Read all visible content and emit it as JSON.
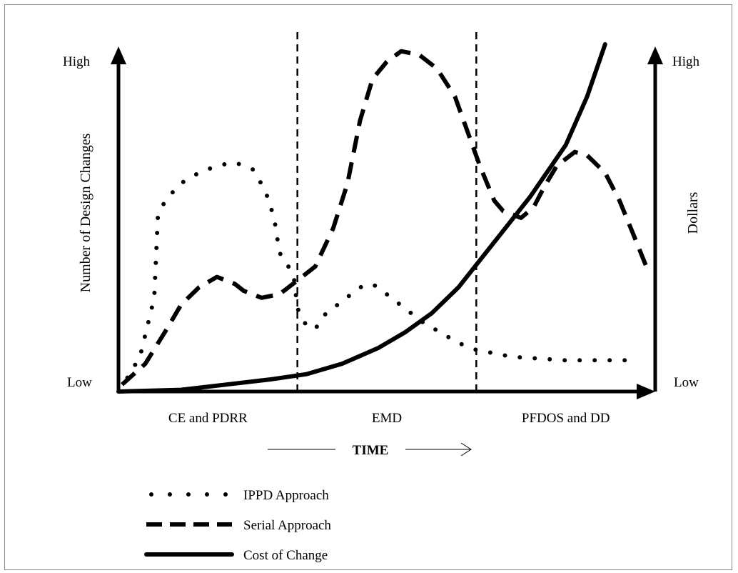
{
  "chart_data": {
    "type": "line",
    "title": "",
    "xlabel": "TIME",
    "ylabel_left": "Number of Design Changes",
    "ylabel_right": "Dollars",
    "y_left_ticks": {
      "high": "High",
      "low": "Low"
    },
    "y_right_ticks": {
      "high": "High",
      "low": "Low"
    },
    "phases": [
      "CE and PDRR",
      "EMD",
      "PFDOS and DD"
    ],
    "phase_boundaries": [
      1,
      2
    ],
    "x_range": [
      0,
      3
    ],
    "y_range": [
      0,
      100
    ],
    "grid": false,
    "legend_position": "bottom-left",
    "series": [
      {
        "name": "IPPD Approach",
        "style": "dotted",
        "points": [
          [
            0.05,
            4
          ],
          [
            0.12,
            10
          ],
          [
            0.2,
            27
          ],
          [
            0.22,
            50
          ],
          [
            0.26,
            55
          ],
          [
            0.35,
            60
          ],
          [
            0.45,
            63
          ],
          [
            0.55,
            65
          ],
          [
            0.65,
            66
          ],
          [
            0.75,
            64
          ],
          [
            0.82,
            58
          ],
          [
            0.87,
            50
          ],
          [
            0.9,
            40
          ],
          [
            0.95,
            36
          ],
          [
            0.98,
            33
          ],
          [
            1.0,
            24
          ],
          [
            1.05,
            19
          ],
          [
            1.1,
            18
          ],
          [
            1.15,
            22
          ],
          [
            1.25,
            26
          ],
          [
            1.35,
            30
          ],
          [
            1.42,
            31
          ],
          [
            1.5,
            28
          ],
          [
            1.6,
            24
          ],
          [
            1.7,
            20
          ],
          [
            1.8,
            17
          ],
          [
            1.9,
            14
          ],
          [
            2.0,
            12
          ],
          [
            2.2,
            10
          ],
          [
            2.5,
            9
          ],
          [
            2.9,
            9
          ]
        ]
      },
      {
        "name": "Serial Approach",
        "style": "dashed",
        "points": [
          [
            0.02,
            2
          ],
          [
            0.15,
            8
          ],
          [
            0.27,
            18
          ],
          [
            0.35,
            25
          ],
          [
            0.45,
            30
          ],
          [
            0.55,
            33
          ],
          [
            0.65,
            31
          ],
          [
            0.7,
            29
          ],
          [
            0.8,
            27
          ],
          [
            0.9,
            28
          ],
          [
            1.0,
            32
          ],
          [
            1.1,
            36
          ],
          [
            1.2,
            47
          ],
          [
            1.28,
            60
          ],
          [
            1.35,
            78
          ],
          [
            1.42,
            90
          ],
          [
            1.5,
            95
          ],
          [
            1.58,
            98
          ],
          [
            1.68,
            97
          ],
          [
            1.78,
            93
          ],
          [
            1.88,
            85
          ],
          [
            1.95,
            75
          ],
          [
            2.02,
            65
          ],
          [
            2.1,
            55
          ],
          [
            2.15,
            52
          ],
          [
            2.25,
            50
          ],
          [
            2.32,
            53
          ],
          [
            2.38,
            59
          ],
          [
            2.45,
            65
          ],
          [
            2.55,
            69
          ],
          [
            2.62,
            68
          ],
          [
            2.72,
            63
          ],
          [
            2.8,
            55
          ],
          [
            2.88,
            45
          ],
          [
            2.95,
            36
          ]
        ]
      },
      {
        "name": "Cost of Change",
        "style": "solid",
        "points": [
          [
            0.0,
            0
          ],
          [
            0.35,
            0.5
          ],
          [
            0.6,
            2
          ],
          [
            0.85,
            3.5
          ],
          [
            1.05,
            5
          ],
          [
            1.25,
            8
          ],
          [
            1.45,
            12.5
          ],
          [
            1.6,
            17
          ],
          [
            1.75,
            22.5
          ],
          [
            1.9,
            30
          ],
          [
            2.1,
            43
          ],
          [
            2.3,
            56
          ],
          [
            2.5,
            71
          ],
          [
            2.62,
            85
          ],
          [
            2.72,
            100
          ]
        ]
      }
    ]
  },
  "legend": [
    {
      "label": "IPPD Approach",
      "style": "dotted"
    },
    {
      "label": "Serial Approach",
      "style": "dashed"
    },
    {
      "label": "Cost of Change",
      "style": "solid"
    }
  ]
}
